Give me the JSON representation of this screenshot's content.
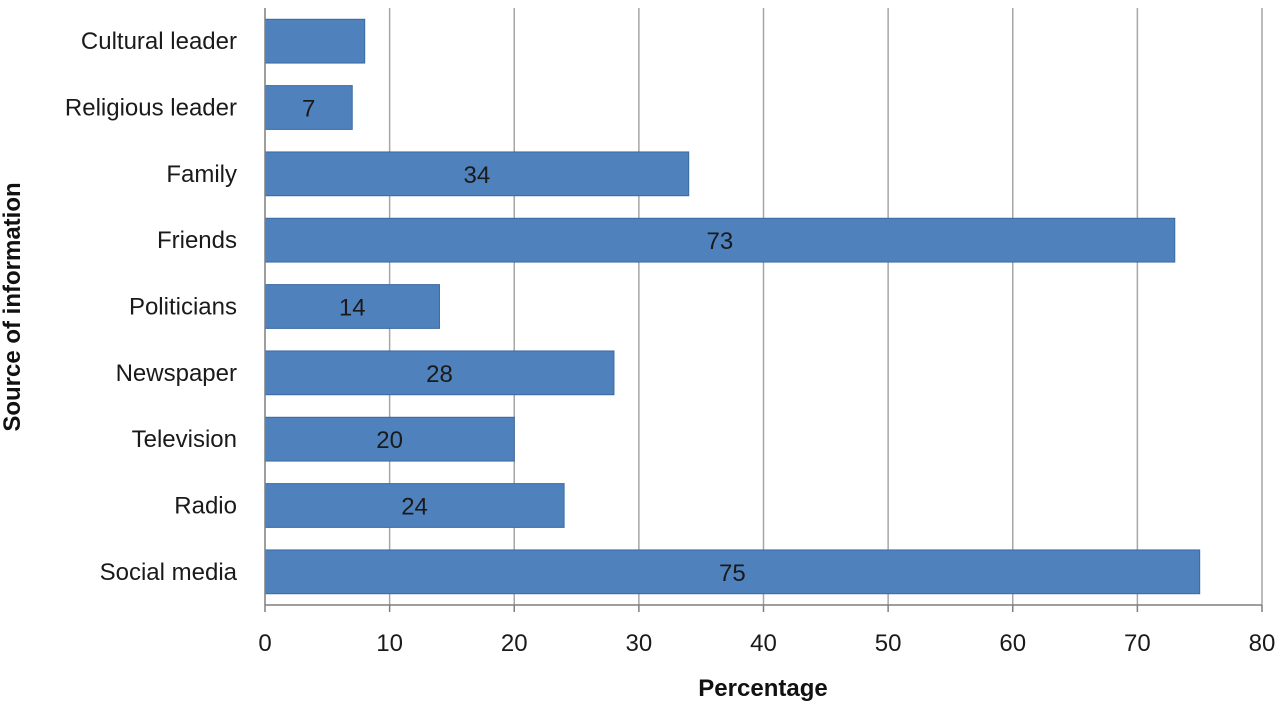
{
  "chart_data": {
    "type": "bar",
    "orientation": "horizontal",
    "categories": [
      "Cultural leader",
      "Religious leader",
      "Family",
      "Friends",
      "Politicians",
      "Newspaper",
      "Television",
      "Radio",
      "Social media"
    ],
    "values": [
      8,
      7,
      34,
      73,
      14,
      28,
      20,
      24,
      75
    ],
    "data_labels": [
      "",
      "7",
      "34",
      "73",
      "14",
      "28",
      "20",
      "24",
      "75"
    ],
    "xlabel": "Percentage",
    "ylabel": "Source of information",
    "xlim": [
      0,
      80
    ],
    "xticks": [
      "0",
      "10",
      "20",
      "30",
      "40",
      "50",
      "60",
      "70",
      "80"
    ],
    "grid": "vertical",
    "bar_color": "#4f81bd",
    "bar_edge_color": "#3a6aa3",
    "grid_color": "#a6a6a6"
  }
}
